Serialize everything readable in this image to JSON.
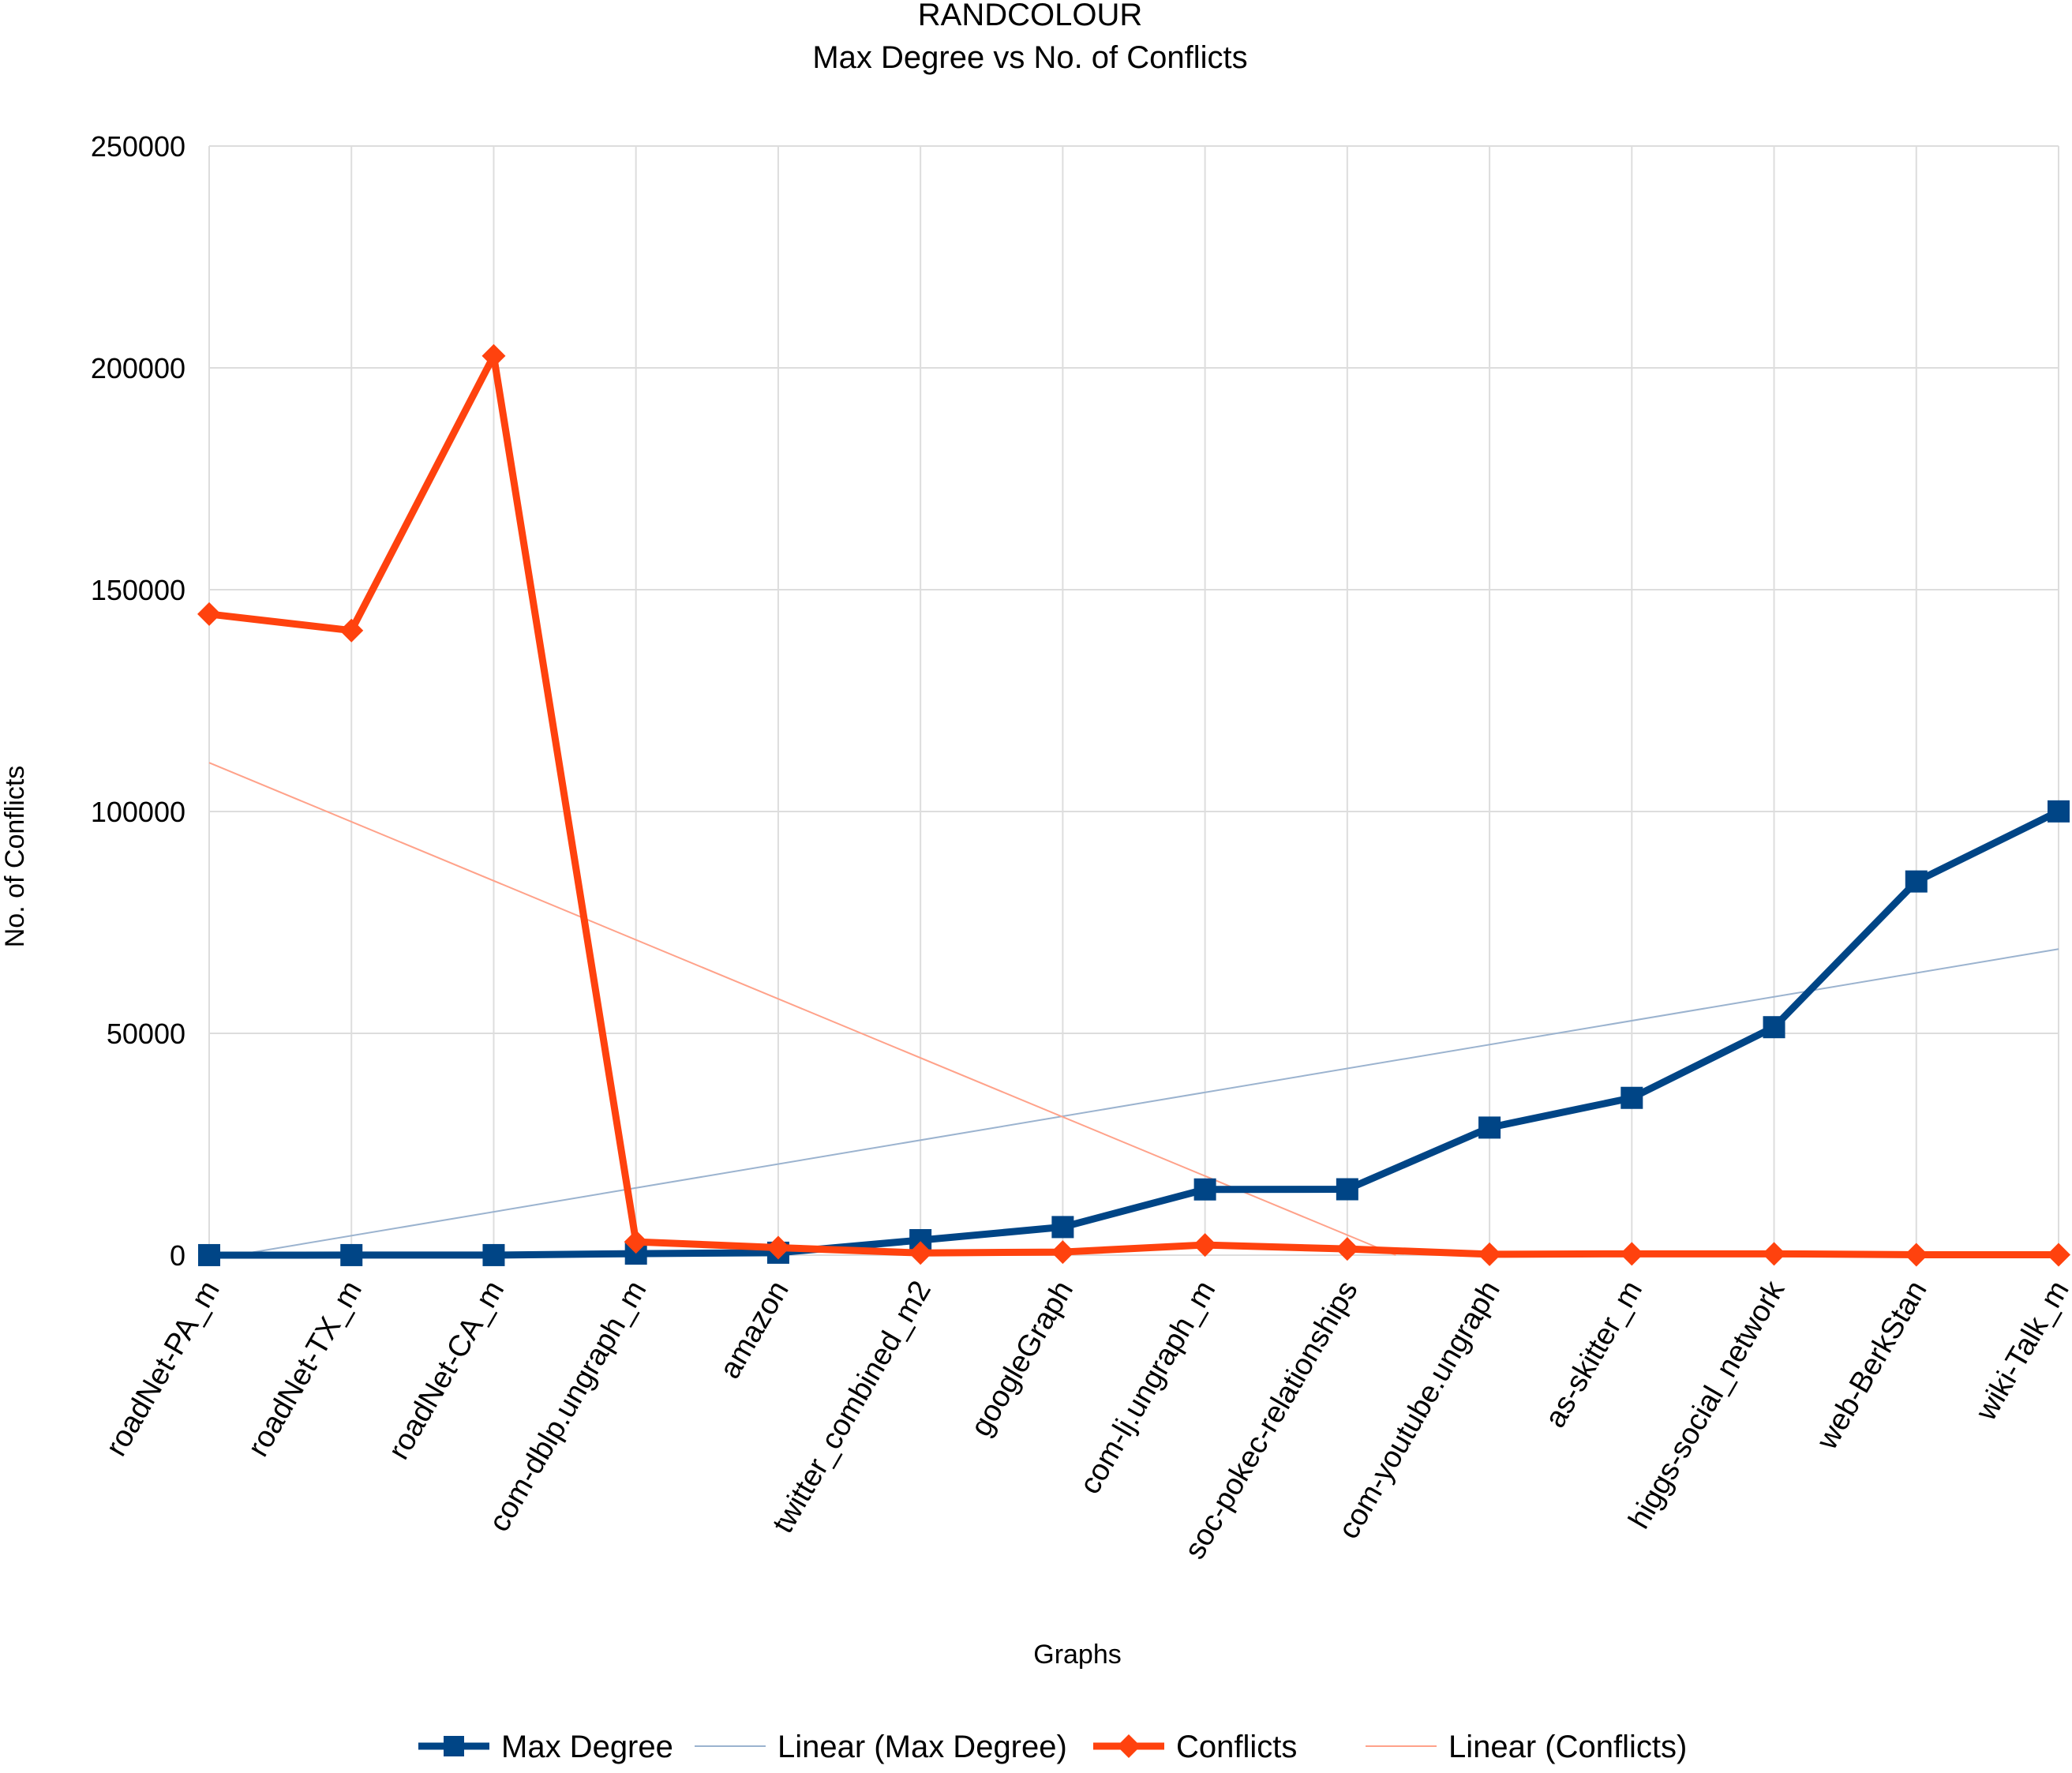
{
  "chart_data": {
    "type": "line",
    "title": "RANDCOLOUR",
    "subtitle": "Max Degree vs No. of Conflicts",
    "xlabel": "Graphs",
    "ylabel": "No. of Conflicts",
    "ylim": [
      0,
      250000
    ],
    "yticks": [
      "0",
      "50000",
      "100000",
      "150000",
      "200000",
      "250000"
    ],
    "grid": true,
    "legend_position": "bottom",
    "categories": [
      "roadNet-PA_m",
      "roadNet-TX_m",
      "roadNet-CA_m",
      "com-dblp.ungraph_m",
      "amazon",
      "twitter_combined_m2",
      "googleGraph",
      "com-lj.ungraph_m",
      "soc-pokec-relationships",
      "com-youtube.ungraph",
      "as-skitter_m",
      "higgs-social_network",
      "web-BerkStan",
      "wiki-Talk_m"
    ],
    "series": [
      {
        "name": "Max Degree",
        "color": "#004586",
        "marker": "square",
        "values": [
          9,
          12,
          12,
          343,
          549,
          3383,
          6332,
          14815,
          14854,
          28754,
          35455,
          51386,
          84230,
          100029
        ]
      },
      {
        "name": "Conflicts",
        "color": "#ff420e",
        "marker": "diamond",
        "values": [
          144500,
          140800,
          202700,
          3000,
          1700,
          500,
          700,
          2300,
          1400,
          200,
          300,
          300,
          100,
          100
        ]
      }
    ],
    "trendlines": [
      {
        "name": "Linear (Max Degree)",
        "color": "#9bb3cf",
        "of": "Max Degree",
        "start": -1000,
        "end": 69000
      },
      {
        "name": "Linear (Conflicts)",
        "color": "#ffa28a",
        "of": "Conflicts",
        "start": 111000,
        "end": -62000
      }
    ]
  }
}
